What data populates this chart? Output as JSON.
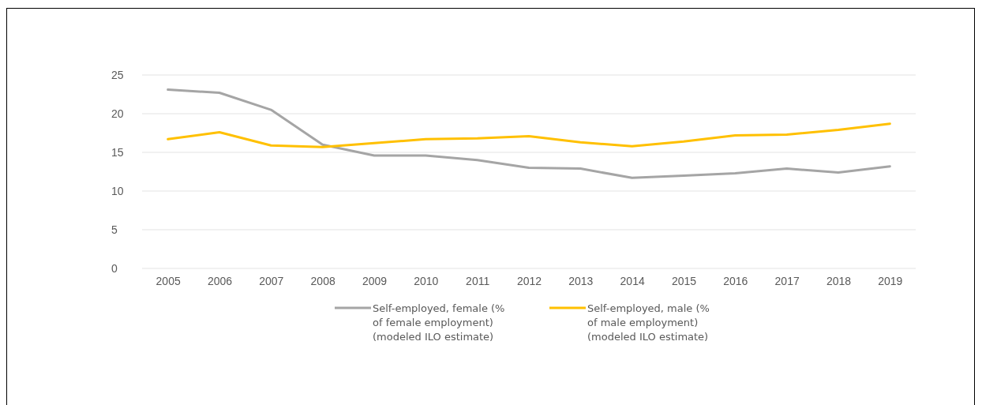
{
  "chart_data": {
    "type": "line",
    "categories": [
      "2005",
      "2006",
      "2007",
      "2008",
      "2009",
      "2010",
      "2011",
      "2012",
      "2013",
      "2014",
      "2015",
      "2016",
      "2017",
      "2018",
      "2019"
    ],
    "series": [
      {
        "name": "Self-employed, female (% of female employment) (modeled ILO estimate)",
        "color": "#a5a5a5",
        "values": [
          23.1,
          22.7,
          20.5,
          16.0,
          14.6,
          14.6,
          14.0,
          13.0,
          12.9,
          11.7,
          12.0,
          12.3,
          12.9,
          12.4,
          13.2
        ]
      },
      {
        "name": "Self-employed, male (% of male employment) (modeled ILO estimate)",
        "color": "#ffc000",
        "values": [
          16.7,
          17.6,
          15.9,
          15.7,
          16.2,
          16.7,
          16.8,
          17.1,
          16.3,
          15.8,
          16.4,
          17.2,
          17.3,
          17.9,
          18.7
        ]
      }
    ],
    "ylim": [
      0,
      25
    ],
    "yticks": [
      0,
      5,
      10,
      15,
      20,
      25
    ],
    "grid": "y",
    "legend": "bottom",
    "marker": "none",
    "line_style": "solid"
  }
}
